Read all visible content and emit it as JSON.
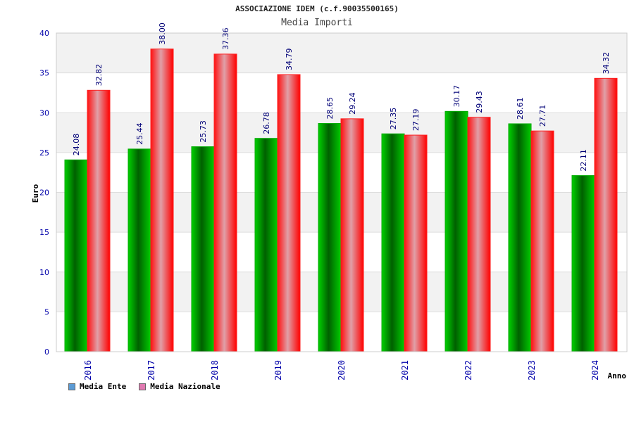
{
  "header": {
    "title": "ASSOCIAZIONE IDEM (c.f.90035500165)",
    "subtitle": "Media Importi"
  },
  "legend": {
    "items": [
      {
        "label": "Media Ente",
        "color": "#5b9bd5"
      },
      {
        "label": "Media Nazionale",
        "color": "#e07ab0"
      }
    ]
  },
  "chart_data": {
    "type": "bar",
    "title": "Media Importi",
    "xlabel": "Anno",
    "ylabel": "Euro",
    "ylim": [
      0,
      40
    ],
    "yticks": [
      0,
      5,
      10,
      15,
      20,
      25,
      30,
      35,
      40
    ],
    "categories": [
      "2016",
      "2017",
      "2018",
      "2019",
      "2020",
      "2021",
      "2022",
      "2023",
      "2024"
    ],
    "series": [
      {
        "name": "Media Ente",
        "color": "#00a000",
        "values": [
          24.08,
          25.44,
          25.73,
          26.78,
          28.65,
          27.35,
          30.17,
          28.61,
          22.11
        ]
      },
      {
        "name": "Media Nazionale",
        "color": "#ff0000",
        "values": [
          32.82,
          38.0,
          37.36,
          34.79,
          29.24,
          27.19,
          29.43,
          27.71,
          34.32
        ]
      }
    ],
    "data_labels": [
      [
        "24.08",
        "25.44",
        "25.73",
        "26.78",
        "28.65",
        "27.35",
        "30.17",
        "28.61",
        "22.11"
      ],
      [
        "32.82",
        "38.00",
        "37.36",
        "34.79",
        "29.24",
        "27.19",
        "29.43",
        "27.71",
        "34.32"
      ]
    ],
    "grid": true
  }
}
